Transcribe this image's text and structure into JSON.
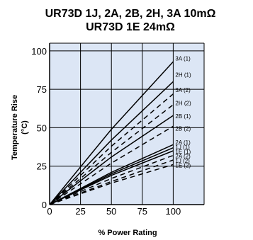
{
  "chart_data": {
    "type": "line",
    "title": "UR73D 1J, 2A, 2B, 2H, 3A 10mΩ",
    "subtitle": "UR73D 1E 24mΩ",
    "xlabel": "% Power Rating",
    "ylabel": "Temperature Rise",
    "ylabel_unit": "(°C)",
    "xlim": [
      0,
      125
    ],
    "ylim": [
      0,
      105
    ],
    "xticks": [
      "0",
      "25",
      "50",
      "75",
      "100"
    ],
    "yticks": [
      "0",
      "25",
      "50",
      "75",
      "100"
    ],
    "grid": true,
    "background_color": "#dce6f5",
    "line_color": "#000000",
    "series": [
      {
        "name": "3A (1)",
        "style": "solid",
        "x": [
          0,
          50,
          100
        ],
        "y": [
          0,
          49,
          93
        ]
      },
      {
        "name": "2H (1)",
        "style": "solid",
        "x": [
          0,
          50,
          100
        ],
        "y": [
          0,
          42,
          80
        ]
      },
      {
        "name": "3A (2)",
        "style": "dashed",
        "x": [
          0,
          50,
          100
        ],
        "y": [
          0,
          38,
          72
        ]
      },
      {
        "name": "2H (2)",
        "style": "dashed",
        "x": [
          0,
          50,
          100
        ],
        "y": [
          0,
          34,
          65
        ]
      },
      {
        "name": "2B (1)",
        "style": "solid",
        "x": [
          0,
          50,
          100
        ],
        "y": [
          0,
          31,
          58
        ]
      },
      {
        "name": "2B (2)",
        "style": "dashed",
        "x": [
          0,
          50,
          100
        ],
        "y": [
          0,
          27,
          51
        ]
      },
      {
        "name": "2A (1)",
        "style": "solid",
        "x": [
          0,
          50,
          100
        ],
        "y": [
          0,
          21,
          39
        ]
      },
      {
        "name": "1J (1)",
        "style": "solid",
        "x": [
          0,
          50,
          100
        ],
        "y": [
          0,
          20,
          37
        ]
      },
      {
        "name": "1E (1)",
        "style": "solid",
        "x": [
          0,
          50,
          100
        ],
        "y": [
          0,
          19,
          35
        ]
      },
      {
        "name": "2A (2)",
        "style": "dashed",
        "x": [
          0,
          50,
          100
        ],
        "y": [
          0,
          17,
          32
        ]
      },
      {
        "name": "1J (2)",
        "style": "dashed",
        "x": [
          0,
          50,
          100
        ],
        "y": [
          0,
          15,
          29
        ]
      },
      {
        "name": "1E (2)",
        "style": "dashed",
        "x": [
          0,
          50,
          100
        ],
        "y": [
          0,
          14,
          26
        ]
      }
    ],
    "series_label_y": [
      95,
      84.5,
      74.5,
      66,
      57.5,
      49.5,
      40.5,
      37.5,
      34.5,
      31.5,
      28.5,
      25.5
    ]
  }
}
